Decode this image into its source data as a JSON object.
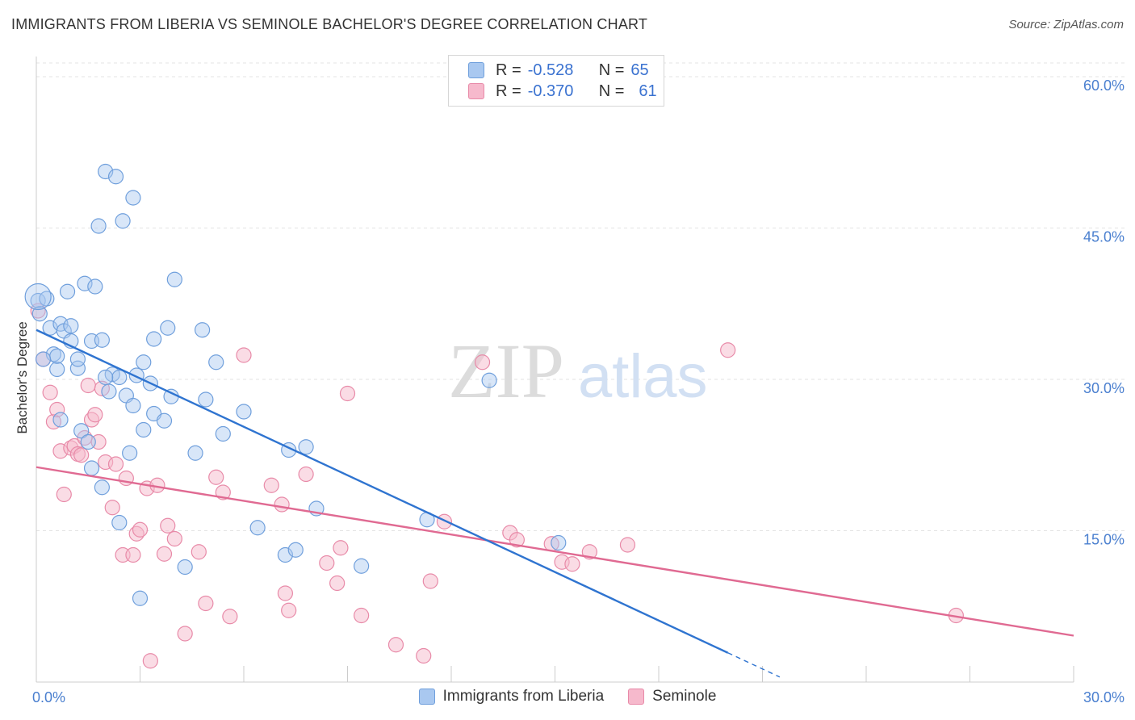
{
  "title": "IMMIGRANTS FROM LIBERIA VS SEMINOLE BACHELOR'S DEGREE CORRELATION CHART",
  "source": "Source: ZipAtlas.com",
  "watermark": {
    "zip": "ZIP",
    "atlas": "atlas"
  },
  "legend": {
    "rows": [
      {
        "r_label": "R =",
        "r_value": "-0.528",
        "n_label": "N =",
        "n_value": "65"
      },
      {
        "r_label": "R =",
        "r_value": "-0.370",
        "n_label": "N =",
        "n_value": "61"
      }
    ]
  },
  "colors": {
    "blue_fill": "#a9c8f0",
    "blue_stroke": "#6f9fdc",
    "blue_line": "#2f74d0",
    "pink_fill": "#f6b9cc",
    "pink_stroke": "#e88aa8",
    "pink_line": "#e06a92",
    "grid": "#e3e3e3",
    "tick_label": "#4a7fcf"
  },
  "chart_data": {
    "type": "scatter",
    "ylabel": "Bachelor's Degree",
    "xlim": [
      0,
      30
    ],
    "ylim": [
      0,
      62
    ],
    "x_ticks": [
      0,
      3,
      6,
      9,
      12,
      15,
      18,
      21,
      24,
      27,
      30
    ],
    "x_tick_labels": [
      {
        "value": 0,
        "label": "0.0%"
      },
      {
        "value": 30,
        "label": "30.0%"
      }
    ],
    "y_ticks": [
      {
        "value": 15,
        "label": "15.0%"
      },
      {
        "value": 30,
        "label": "30.0%"
      },
      {
        "value": 45,
        "label": "45.0%"
      },
      {
        "value": 60,
        "label": "60.0%"
      }
    ],
    "grid": true,
    "legend_position": "top-center",
    "series": [
      {
        "name": "Immigrants from Liberia",
        "r": -0.528,
        "n": 65,
        "trend": {
          "x0": 0,
          "y0": 34.9,
          "x1": 20,
          "y1": 2.9,
          "dash_to_x": 21.5
        },
        "points": [
          [
            0.05,
            37.8
          ],
          [
            0.1,
            36.5
          ],
          [
            0.3,
            38.0
          ],
          [
            0.4,
            35.1
          ],
          [
            0.5,
            32.5
          ],
          [
            0.6,
            31.0
          ],
          [
            0.6,
            32.3
          ],
          [
            0.7,
            35.5
          ],
          [
            0.7,
            26.0
          ],
          [
            0.8,
            34.8
          ],
          [
            0.9,
            38.7
          ],
          [
            1.0,
            35.3
          ],
          [
            1.0,
            33.8
          ],
          [
            1.2,
            31.1
          ],
          [
            1.2,
            32.0
          ],
          [
            1.3,
            24.9
          ],
          [
            1.4,
            39.5
          ],
          [
            1.5,
            23.8
          ],
          [
            1.6,
            21.2
          ],
          [
            1.6,
            33.8
          ],
          [
            1.7,
            39.2
          ],
          [
            1.8,
            45.2
          ],
          [
            1.9,
            33.9
          ],
          [
            1.9,
            19.3
          ],
          [
            2.0,
            50.6
          ],
          [
            2.1,
            28.8
          ],
          [
            2.2,
            30.5
          ],
          [
            2.3,
            50.1
          ],
          [
            2.4,
            15.8
          ],
          [
            2.4,
            30.2
          ],
          [
            2.5,
            45.7
          ],
          [
            2.6,
            28.4
          ],
          [
            2.7,
            22.7
          ],
          [
            2.8,
            48.0
          ],
          [
            2.8,
            27.4
          ],
          [
            2.9,
            30.4
          ],
          [
            3.0,
            8.3
          ],
          [
            3.1,
            25.0
          ],
          [
            3.1,
            31.7
          ],
          [
            3.3,
            29.6
          ],
          [
            3.4,
            26.6
          ],
          [
            3.4,
            34.0
          ],
          [
            3.7,
            25.9
          ],
          [
            3.8,
            35.1
          ],
          [
            3.9,
            28.3
          ],
          [
            4.0,
            39.9
          ],
          [
            4.3,
            11.4
          ],
          [
            4.6,
            22.7
          ],
          [
            4.8,
            34.9
          ],
          [
            4.9,
            28.0
          ],
          [
            5.2,
            31.7
          ],
          [
            5.4,
            24.6
          ],
          [
            6.0,
            26.8
          ],
          [
            6.4,
            15.3
          ],
          [
            7.2,
            12.6
          ],
          [
            7.3,
            23.0
          ],
          [
            7.5,
            13.1
          ],
          [
            7.8,
            23.3
          ],
          [
            8.1,
            17.2
          ],
          [
            9.4,
            11.5
          ],
          [
            11.3,
            16.1
          ],
          [
            13.1,
            29.9
          ],
          [
            15.1,
            13.8
          ],
          [
            0.2,
            32.0
          ],
          [
            2.0,
            30.2
          ]
        ]
      },
      {
        "name": "Seminole",
        "r": -0.37,
        "n": 61,
        "trend": {
          "x0": 0,
          "y0": 21.3,
          "x1": 30,
          "y1": 4.6
        },
        "points": [
          [
            0.05,
            36.8
          ],
          [
            0.2,
            32.0
          ],
          [
            0.4,
            28.7
          ],
          [
            0.5,
            25.8
          ],
          [
            0.6,
            27.0
          ],
          [
            0.7,
            22.9
          ],
          [
            0.8,
            18.6
          ],
          [
            1.0,
            23.2
          ],
          [
            1.1,
            23.4
          ],
          [
            1.2,
            22.6
          ],
          [
            1.3,
            22.5
          ],
          [
            1.4,
            24.2
          ],
          [
            1.5,
            29.4
          ],
          [
            1.6,
            26.0
          ],
          [
            1.7,
            26.5
          ],
          [
            1.8,
            23.8
          ],
          [
            1.9,
            29.1
          ],
          [
            2.0,
            21.8
          ],
          [
            2.2,
            17.3
          ],
          [
            2.3,
            21.6
          ],
          [
            2.5,
            12.6
          ],
          [
            2.6,
            20.2
          ],
          [
            2.8,
            12.6
          ],
          [
            2.9,
            14.7
          ],
          [
            3.0,
            15.1
          ],
          [
            3.2,
            19.2
          ],
          [
            3.3,
            2.1
          ],
          [
            3.5,
            19.5
          ],
          [
            3.7,
            12.7
          ],
          [
            3.8,
            15.5
          ],
          [
            4.0,
            14.2
          ],
          [
            4.3,
            4.8
          ],
          [
            4.7,
            12.9
          ],
          [
            4.9,
            7.8
          ],
          [
            5.2,
            20.3
          ],
          [
            5.4,
            18.8
          ],
          [
            5.6,
            6.5
          ],
          [
            6.0,
            32.4
          ],
          [
            6.8,
            19.5
          ],
          [
            7.1,
            17.6
          ],
          [
            7.2,
            8.8
          ],
          [
            7.3,
            7.1
          ],
          [
            7.8,
            20.6
          ],
          [
            8.4,
            11.8
          ],
          [
            8.7,
            9.8
          ],
          [
            8.8,
            13.3
          ],
          [
            9.0,
            28.6
          ],
          [
            9.4,
            6.6
          ],
          [
            10.4,
            3.7
          ],
          [
            11.2,
            2.6
          ],
          [
            11.4,
            10.0
          ],
          [
            11.8,
            15.9
          ],
          [
            12.9,
            31.7
          ],
          [
            13.7,
            14.8
          ],
          [
            13.9,
            14.1
          ],
          [
            14.9,
            13.7
          ],
          [
            15.2,
            11.9
          ],
          [
            15.5,
            11.7
          ],
          [
            16.0,
            12.9
          ],
          [
            17.1,
            13.6
          ],
          [
            20.0,
            32.9
          ]
        ],
        "extra_points": [
          [
            26.6,
            6.6
          ]
        ]
      }
    ]
  },
  "bottom_legend": [
    "Immigrants from Liberia",
    "Seminole"
  ]
}
